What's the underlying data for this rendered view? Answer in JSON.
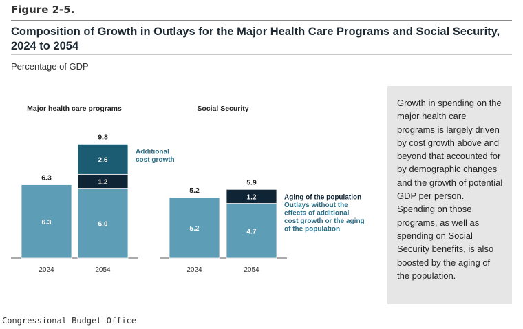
{
  "figure_label": "Figure 2-5.",
  "title": "Composition of Growth in Outlays for the Major Health Care Programs and Social Security, 2024 to 2054",
  "subtitle": "Percentage of GDP",
  "sidebar_text": "Growth in spending on the major health care programs is largely driven by cost growth above and beyond that accounted for by demographic changes and the growth of potential GDP per person. Spending on those programs, as well as spending on Social Security benefits, is also boosted by the aging of the population.",
  "source": "Congressional Budget Office",
  "colors": {
    "base": "#5e9db6",
    "aging": "#0f2535",
    "cost_growth": "#1b5c72",
    "annotation": "#2a6f8a",
    "axis": "#555555"
  },
  "chart_data": [
    {
      "type": "bar",
      "stacked": true,
      "title": "Major health care programs",
      "categories": [
        "2024",
        "2054"
      ],
      "series": [
        {
          "name": "Outlays without the effects of additional cost growth or the aging of the population",
          "values": [
            6.3,
            6.0
          ]
        },
        {
          "name": "Aging of the population",
          "values": [
            0,
            1.2
          ]
        },
        {
          "name": "Additional cost growth",
          "values": [
            0,
            2.6
          ]
        }
      ],
      "totals": [
        6.3,
        9.8
      ],
      "annotations": [
        "Additional cost growth"
      ]
    },
    {
      "type": "bar",
      "stacked": true,
      "title": "Social Security",
      "categories": [
        "2024",
        "2054"
      ],
      "series": [
        {
          "name": "Outlays without the effects of additional cost growth or the aging of the population",
          "values": [
            5.2,
            4.7
          ]
        },
        {
          "name": "Aging of the population",
          "values": [
            0,
            1.2
          ]
        }
      ],
      "totals": [
        5.2,
        5.9
      ],
      "annotations": [
        "Aging of the population",
        "Outlays without the effects of additional cost growth or the aging of the population"
      ]
    }
  ]
}
